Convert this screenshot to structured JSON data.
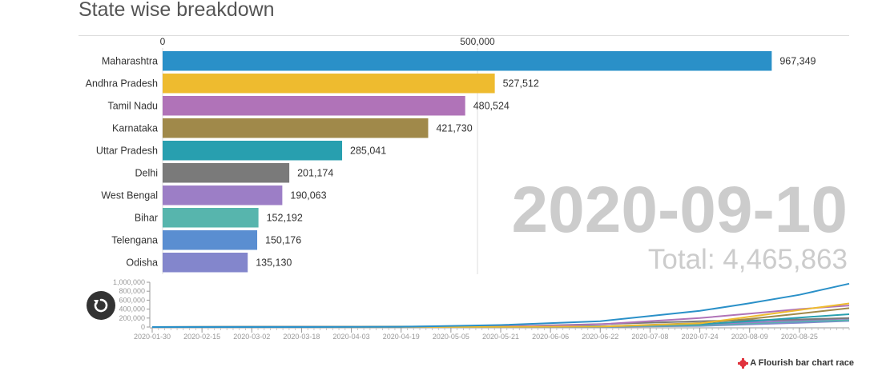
{
  "title": "State wise breakdown",
  "date_label": "2020-09-10",
  "total_label": "Total: 4,465,863",
  "credit": "A Flourish bar chart race",
  "colors": {
    "date_text": "#cccccc",
    "total_text": "#cccccc",
    "axis_text": "#333333",
    "grid": "#dddddd"
  },
  "chart_data": [
    {
      "type": "bar",
      "orientation": "horizontal",
      "categories": [
        "Maharashtra",
        "Andhra Pradesh",
        "Tamil Nadu",
        "Karnataka",
        "Uttar Pradesh",
        "Delhi",
        "West Bengal",
        "Bihar",
        "Telengana",
        "Odisha"
      ],
      "values": [
        967349,
        527512,
        480524,
        421730,
        285041,
        201174,
        190063,
        152192,
        150176,
        135130
      ],
      "value_labels": [
        "967,349",
        "527,512",
        "480,524",
        "421,730",
        "285,041",
        "201,174",
        "190,063",
        "152,192",
        "150,176",
        "135,130"
      ],
      "colors": [
        "#2a90c8",
        "#eebb2f",
        "#b073b8",
        "#a0894a",
        "#289faf",
        "#7a7a7a",
        "#9c7ec6",
        "#57b5ad",
        "#5a8ed1",
        "#8386cc"
      ],
      "xlim": [
        0,
        1000000
      ],
      "x_ticks": [
        0,
        500000
      ],
      "x_tick_labels": [
        "0",
        "500,000"
      ],
      "axis_position": "top",
      "grid": true
    },
    {
      "type": "line",
      "x_tick_labels": [
        "2020-01-30",
        "2020-02-15",
        "2020-03-02",
        "2020-03-18",
        "2020-04-03",
        "2020-04-19",
        "2020-05-05",
        "2020-05-21",
        "2020-06-06",
        "2020-06-22",
        "2020-07-08",
        "2020-07-24",
        "2020-08-09",
        "2020-08-25"
      ],
      "xlim": [
        "2020-01-30",
        "2020-09-10"
      ],
      "ylim": [
        0,
        1000000
      ],
      "y_ticks": [
        0,
        200000,
        400000,
        600000,
        800000,
        1000000
      ],
      "y_tick_labels": [
        "0",
        "200,000",
        "400,000",
        "600,000",
        "800,000",
        "1,000,000"
      ],
      "series": [
        {
          "name": "Maharashtra",
          "color": "#2a90c8",
          "x": [
            "2020-01-30",
            "2020-03-18",
            "2020-04-19",
            "2020-05-21",
            "2020-06-22",
            "2020-07-24",
            "2020-08-09",
            "2020-08-25",
            "2020-09-10"
          ],
          "values": [
            0,
            0,
            5000,
            45000,
            130000,
            360000,
            530000,
            720000,
            967349
          ]
        },
        {
          "name": "Andhra Pradesh",
          "color": "#eebb2f",
          "x": [
            "2020-01-30",
            "2020-05-05",
            "2020-06-22",
            "2020-07-24",
            "2020-08-09",
            "2020-08-25",
            "2020-09-10"
          ],
          "values": [
            0,
            1500,
            10000,
            80000,
            230000,
            380000,
            527512
          ]
        },
        {
          "name": "Tamil Nadu",
          "color": "#b073b8",
          "x": [
            "2020-01-30",
            "2020-05-05",
            "2020-06-06",
            "2020-06-22",
            "2020-07-24",
            "2020-08-09",
            "2020-08-25",
            "2020-09-10"
          ],
          "values": [
            0,
            3000,
            30000,
            60000,
            200000,
            300000,
            400000,
            480524
          ]
        },
        {
          "name": "Karnataka",
          "color": "#a0894a",
          "x": [
            "2020-01-30",
            "2020-06-22",
            "2020-07-24",
            "2020-08-09",
            "2020-08-25",
            "2020-09-10"
          ],
          "values": [
            0,
            10000,
            90000,
            180000,
            300000,
            421730
          ]
        },
        {
          "name": "Uttar Pradesh",
          "color": "#289faf",
          "x": [
            "2020-01-30",
            "2020-06-22",
            "2020-07-24",
            "2020-08-09",
            "2020-08-25",
            "2020-09-10"
          ],
          "values": [
            0,
            18000,
            60000,
            130000,
            210000,
            285041
          ]
        },
        {
          "name": "Delhi",
          "color": "#7a7a7a",
          "x": [
            "2020-01-30",
            "2020-05-21",
            "2020-06-22",
            "2020-07-24",
            "2020-08-25",
            "2020-09-10"
          ],
          "values": [
            0,
            12000,
            65000,
            130000,
            170000,
            201174
          ]
        },
        {
          "name": "West Bengal",
          "color": "#9c7ec6",
          "x": [
            "2020-01-30",
            "2020-06-22",
            "2020-07-24",
            "2020-08-25",
            "2020-09-10"
          ],
          "values": [
            0,
            15000,
            55000,
            150000,
            190063
          ]
        },
        {
          "name": "Bihar",
          "color": "#57b5ad",
          "x": [
            "2020-01-30",
            "2020-06-22",
            "2020-07-24",
            "2020-08-25",
            "2020-09-10"
          ],
          "values": [
            0,
            8000,
            35000,
            125000,
            152192
          ]
        },
        {
          "name": "Telengana",
          "color": "#5a8ed1",
          "x": [
            "2020-01-30",
            "2020-06-22",
            "2020-07-24",
            "2020-08-25",
            "2020-09-10"
          ],
          "values": [
            0,
            8000,
            50000,
            120000,
            150176
          ]
        },
        {
          "name": "Odisha",
          "color": "#8386cc",
          "x": [
            "2020-01-30",
            "2020-06-22",
            "2020-07-24",
            "2020-08-25",
            "2020-09-10"
          ],
          "values": [
            0,
            5000,
            25000,
            95000,
            135130
          ]
        }
      ],
      "grid": false
    }
  ]
}
